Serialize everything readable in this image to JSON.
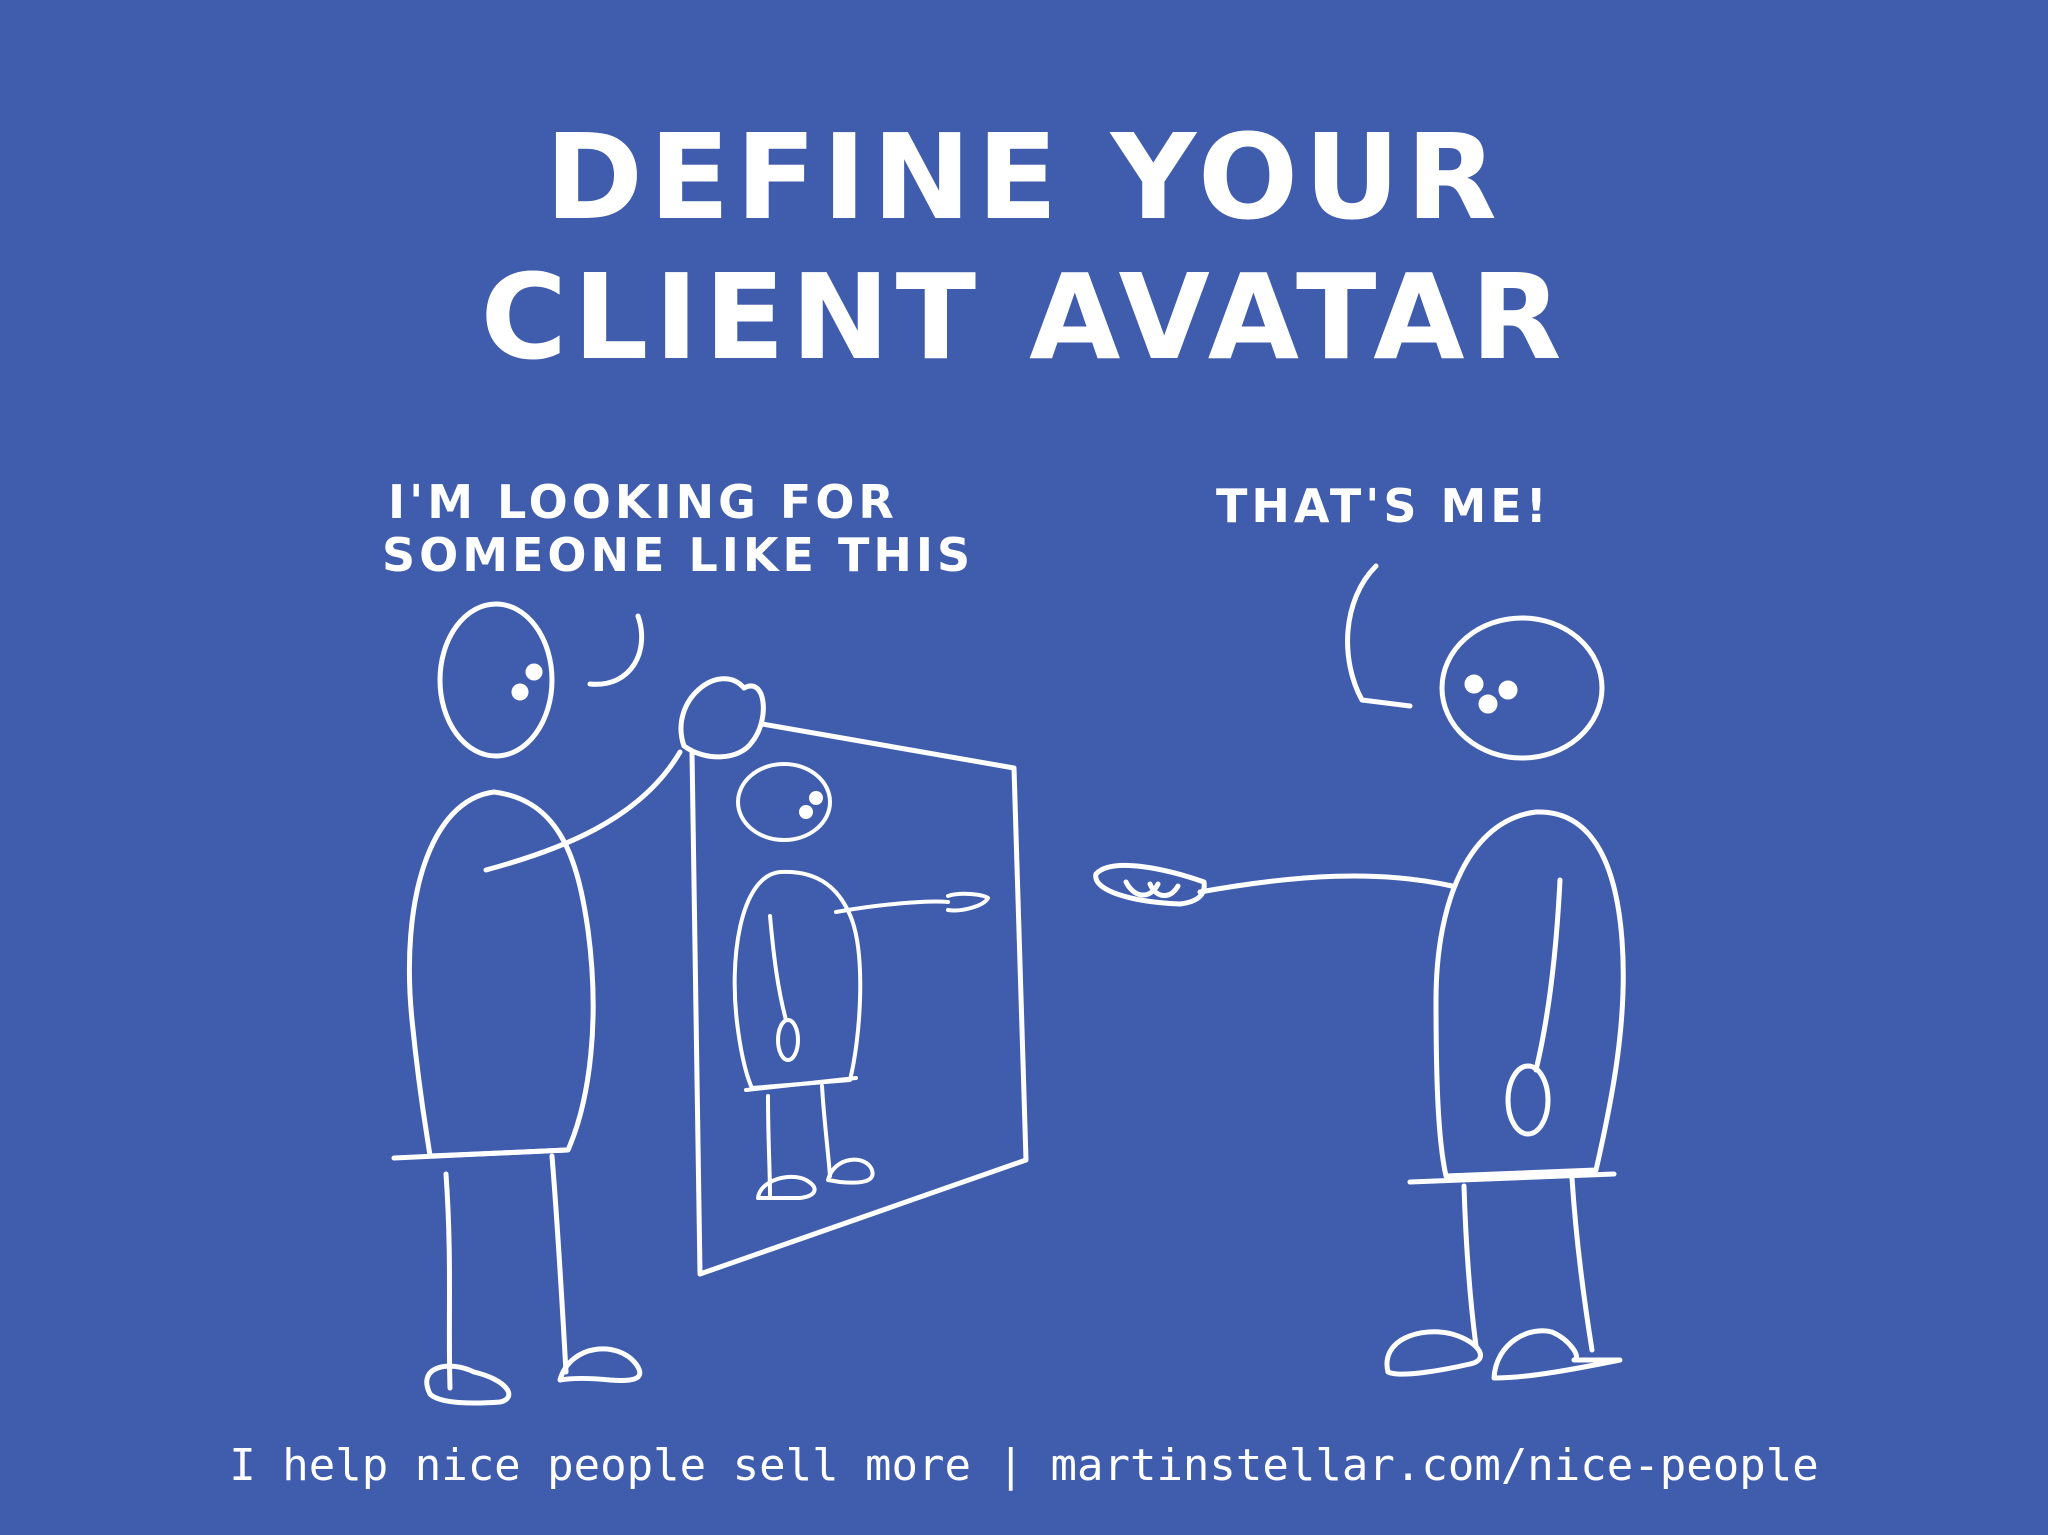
{
  "background_color": "#405DAD",
  "ink_color": "#ffffff",
  "title": {
    "line1": "DEFINE YOUR",
    "line2": "CLIENT AVATAR"
  },
  "speech": {
    "left_line1": "I'M LOOKING FOR",
    "left_line2": "SOMEONE LIKE THIS",
    "right": "THAT'S ME!"
  },
  "footer": "I help nice people sell more | martinstellar.com/nice-people"
}
